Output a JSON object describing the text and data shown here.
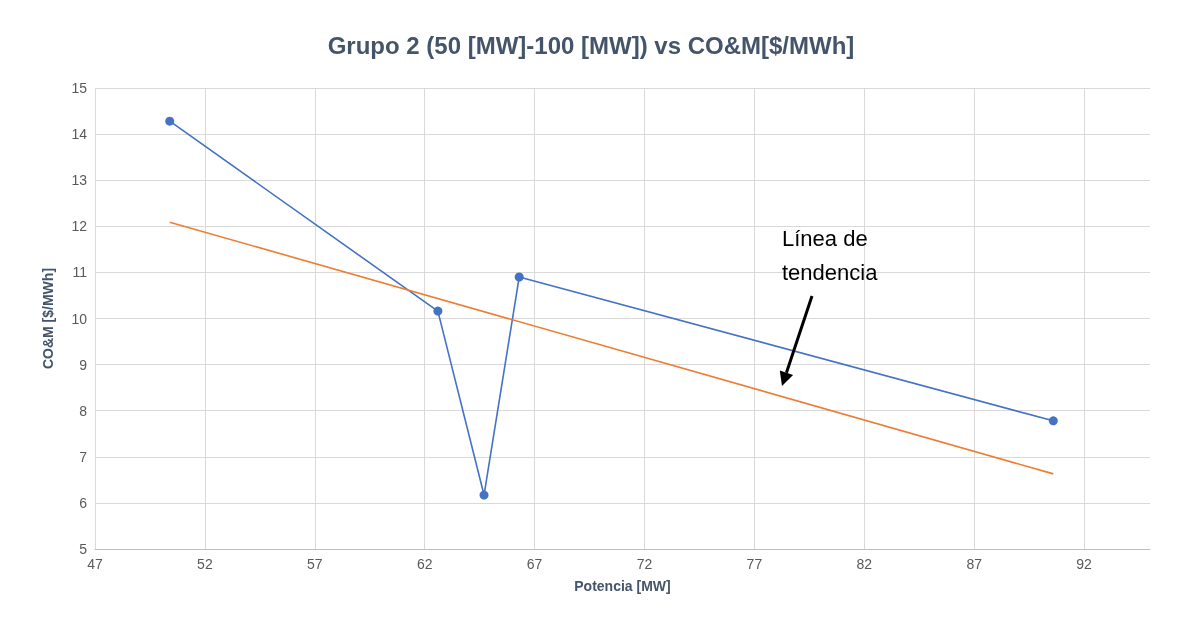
{
  "chart_data": {
    "type": "line",
    "title": "Grupo 2 (50 [MW]-100 [MW]) vs CO&M[$/MWh]",
    "xlabel": "Potencia [MW]",
    "ylabel": "CO&M [$/MWh]",
    "xlim": [
      47,
      95
    ],
    "xticks": [
      47,
      52,
      57,
      62,
      67,
      72,
      77,
      82,
      87,
      92
    ],
    "ylim": [
      5,
      15
    ],
    "yticks": [
      5,
      6,
      7,
      8,
      9,
      10,
      11,
      12,
      13,
      14,
      15
    ],
    "grid": true,
    "series": [
      {
        "type": "line",
        "color": "#4472c4",
        "marker": "circle",
        "x": [
          50.4,
          62.6,
          64.7,
          66.3,
          90.6
        ],
        "values": [
          14.28,
          10.16,
          6.17,
          10.9,
          7.78
        ]
      },
      {
        "type": "line",
        "color": "#ed7d31",
        "marker": "none",
        "x": [
          50.4,
          90.6
        ],
        "values": [
          12.09,
          6.63
        ]
      }
    ],
    "annotations": [
      "Línea de tendencia"
    ]
  }
}
